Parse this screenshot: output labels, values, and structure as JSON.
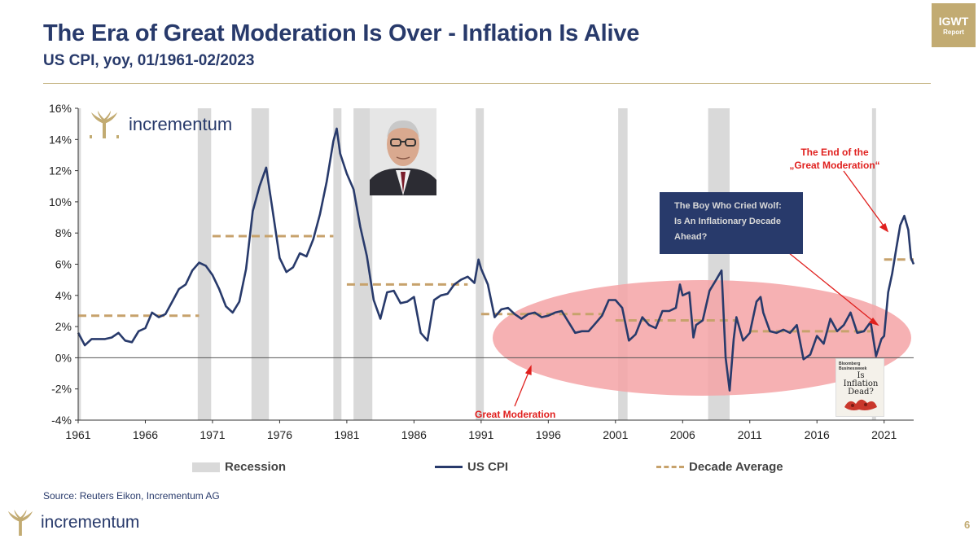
{
  "header": {
    "title": "The Era of Great Moderation Is Over - Inflation Is Alive",
    "subtitle": "US CPI, yoy, 01/1961-02/2023"
  },
  "badge": {
    "line1": "IGWT",
    "line2": "Report"
  },
  "brand": {
    "name": "incrementum",
    "color": "#c2ab72"
  },
  "legend": {
    "recession": "Recession",
    "cpi": "US CPI",
    "decade": "Decade Average"
  },
  "source": "Source: Reuters Eikon, Incrementum AG",
  "page_number": "6",
  "annotations": {
    "end_line1": "The End of the",
    "end_line2": "„Great Moderation“",
    "great_moderation": "Great Moderation",
    "wolf_line1": "The Boy Who Cried Wolf:",
    "wolf_line2": "Is An Inflationary Decade",
    "wolf_line3": "Ahead?"
  },
  "magazine_cover": {
    "header_line1": "Bloomberg",
    "header_line2": "Businessweek",
    "line1": "Is",
    "line2": "Inflation",
    "line3": "Dead?"
  },
  "colors": {
    "cpi": "#283a6b",
    "decade": "#c7a26c",
    "recession": "#d9d9d9",
    "ellipse": "#f4a3a6",
    "annotation": "#e0201e",
    "gold": "#c2ab72"
  },
  "chart_data": {
    "type": "line",
    "x_range": [
      1961.0,
      2023.2
    ],
    "ylim": [
      -4,
      16
    ],
    "y_ticks": [
      -4,
      -2,
      0,
      2,
      4,
      6,
      8,
      10,
      12,
      14,
      16
    ],
    "y_tick_labels": [
      "-4%",
      "-2%",
      "0%",
      "2%",
      "4%",
      "6%",
      "8%",
      "10%",
      "12%",
      "14%",
      "16%"
    ],
    "x_ticks": [
      1961,
      1966,
      1971,
      1976,
      1981,
      1986,
      1991,
      1996,
      2001,
      2006,
      2011,
      2016,
      2021
    ],
    "x_tick_labels": [
      "1961",
      "1966",
      "1971",
      "1976",
      "1981",
      "1986",
      "1991",
      "1996",
      "2001",
      "2006",
      "2011",
      "2016",
      "2021"
    ],
    "recessions": [
      [
        1961.0,
        1961.2
      ],
      [
        1969.9,
        1970.9
      ],
      [
        1973.9,
        1975.2
      ],
      [
        1980.0,
        1980.6
      ],
      [
        1981.5,
        1982.9
      ],
      [
        1990.6,
        1991.2
      ],
      [
        2001.2,
        2001.9
      ],
      [
        2007.9,
        2009.5
      ],
      [
        2020.1,
        2020.4
      ]
    ],
    "series": [
      {
        "name": "US CPI",
        "x": [
          1961.0,
          1961.5,
          1962.0,
          1962.5,
          1963.0,
          1963.5,
          1964.0,
          1964.5,
          1965.0,
          1965.5,
          1966.0,
          1966.5,
          1967.0,
          1967.5,
          1968.0,
          1968.5,
          1969.0,
          1969.5,
          1970.0,
          1970.5,
          1971.0,
          1971.5,
          1972.0,
          1972.5,
          1973.0,
          1973.5,
          1974.0,
          1974.5,
          1975.0,
          1975.5,
          1976.0,
          1976.5,
          1977.0,
          1977.5,
          1978.0,
          1978.5,
          1979.0,
          1979.5,
          1980.0,
          1980.25,
          1980.5,
          1981.0,
          1981.5,
          1982.0,
          1982.5,
          1983.0,
          1983.5,
          1984.0,
          1984.5,
          1985.0,
          1985.5,
          1986.0,
          1986.5,
          1987.0,
          1987.5,
          1988.0,
          1988.5,
          1989.0,
          1989.5,
          1990.0,
          1990.5,
          1990.8,
          1991.0,
          1991.5,
          1992.0,
          1992.5,
          1993.0,
          1993.5,
          1994.0,
          1994.5,
          1995.0,
          1995.5,
          1996.0,
          1996.5,
          1997.0,
          1997.5,
          1998.0,
          1998.5,
          1999.0,
          1999.5,
          2000.0,
          2000.5,
          2001.0,
          2001.5,
          2002.0,
          2002.5,
          2003.0,
          2003.5,
          2004.0,
          2004.5,
          2005.0,
          2005.5,
          2005.8,
          2006.0,
          2006.5,
          2006.8,
          2007.0,
          2007.5,
          2008.0,
          2008.5,
          2008.9,
          2009.2,
          2009.5,
          2009.8,
          2010.0,
          2010.5,
          2011.0,
          2011.5,
          2011.8,
          2012.0,
          2012.5,
          2013.0,
          2013.5,
          2014.0,
          2014.5,
          2015.0,
          2015.5,
          2016.0,
          2016.5,
          2017.0,
          2017.5,
          2018.0,
          2018.5,
          2019.0,
          2019.5,
          2020.0,
          2020.4,
          2020.8,
          2021.0,
          2021.3,
          2021.6,
          2021.9,
          2022.2,
          2022.5,
          2022.8,
          2023.0,
          2023.2
        ],
        "values": [
          1.6,
          0.8,
          1.2,
          1.2,
          1.2,
          1.3,
          1.6,
          1.1,
          1.0,
          1.7,
          1.9,
          2.9,
          2.6,
          2.8,
          3.6,
          4.4,
          4.7,
          5.6,
          6.1,
          5.9,
          5.3,
          4.4,
          3.3,
          2.9,
          3.6,
          5.7,
          9.4,
          11.0,
          12.2,
          9.3,
          6.4,
          5.5,
          5.8,
          6.7,
          6.5,
          7.6,
          9.2,
          11.3,
          13.9,
          14.7,
          13.1,
          11.8,
          10.8,
          8.4,
          6.5,
          3.7,
          2.5,
          4.2,
          4.3,
          3.5,
          3.6,
          3.9,
          1.6,
          1.1,
          3.7,
          4.0,
          4.1,
          4.7,
          5.0,
          5.2,
          4.8,
          6.3,
          5.7,
          4.7,
          2.6,
          3.1,
          3.2,
          2.8,
          2.5,
          2.8,
          2.9,
          2.6,
          2.7,
          2.9,
          3.0,
          2.3,
          1.6,
          1.7,
          1.7,
          2.2,
          2.7,
          3.7,
          3.7,
          3.2,
          1.1,
          1.5,
          2.6,
          2.1,
          1.9,
          3.0,
          3.0,
          3.2,
          4.7,
          4.0,
          4.2,
          1.3,
          2.1,
          2.4,
          4.3,
          5.0,
          5.6,
          0.0,
          -2.1,
          1.2,
          2.6,
          1.1,
          1.6,
          3.6,
          3.9,
          2.9,
          1.7,
          1.6,
          1.8,
          1.6,
          2.1,
          -0.1,
          0.2,
          1.4,
          0.9,
          2.5,
          1.7,
          2.1,
          2.9,
          1.6,
          1.7,
          2.3,
          0.1,
          1.2,
          1.4,
          4.2,
          5.4,
          7.0,
          8.5,
          9.1,
          8.2,
          6.4,
          6.0
        ]
      }
    ],
    "decade_averages": [
      {
        "x0": 1961,
        "x1": 1970,
        "value": 2.7
      },
      {
        "x0": 1971,
        "x1": 1980,
        "value": 7.8
      },
      {
        "x0": 1981,
        "x1": 1990,
        "value": 4.7
      },
      {
        "x0": 1991,
        "x1": 2000,
        "value": 2.8
      },
      {
        "x0": 2001,
        "x1": 2010,
        "value": 2.4
      },
      {
        "x0": 2011,
        "x1": 2020,
        "value": 1.7
      },
      {
        "x0": 2021,
        "x1": 2023.2,
        "value": 6.3
      }
    ]
  }
}
